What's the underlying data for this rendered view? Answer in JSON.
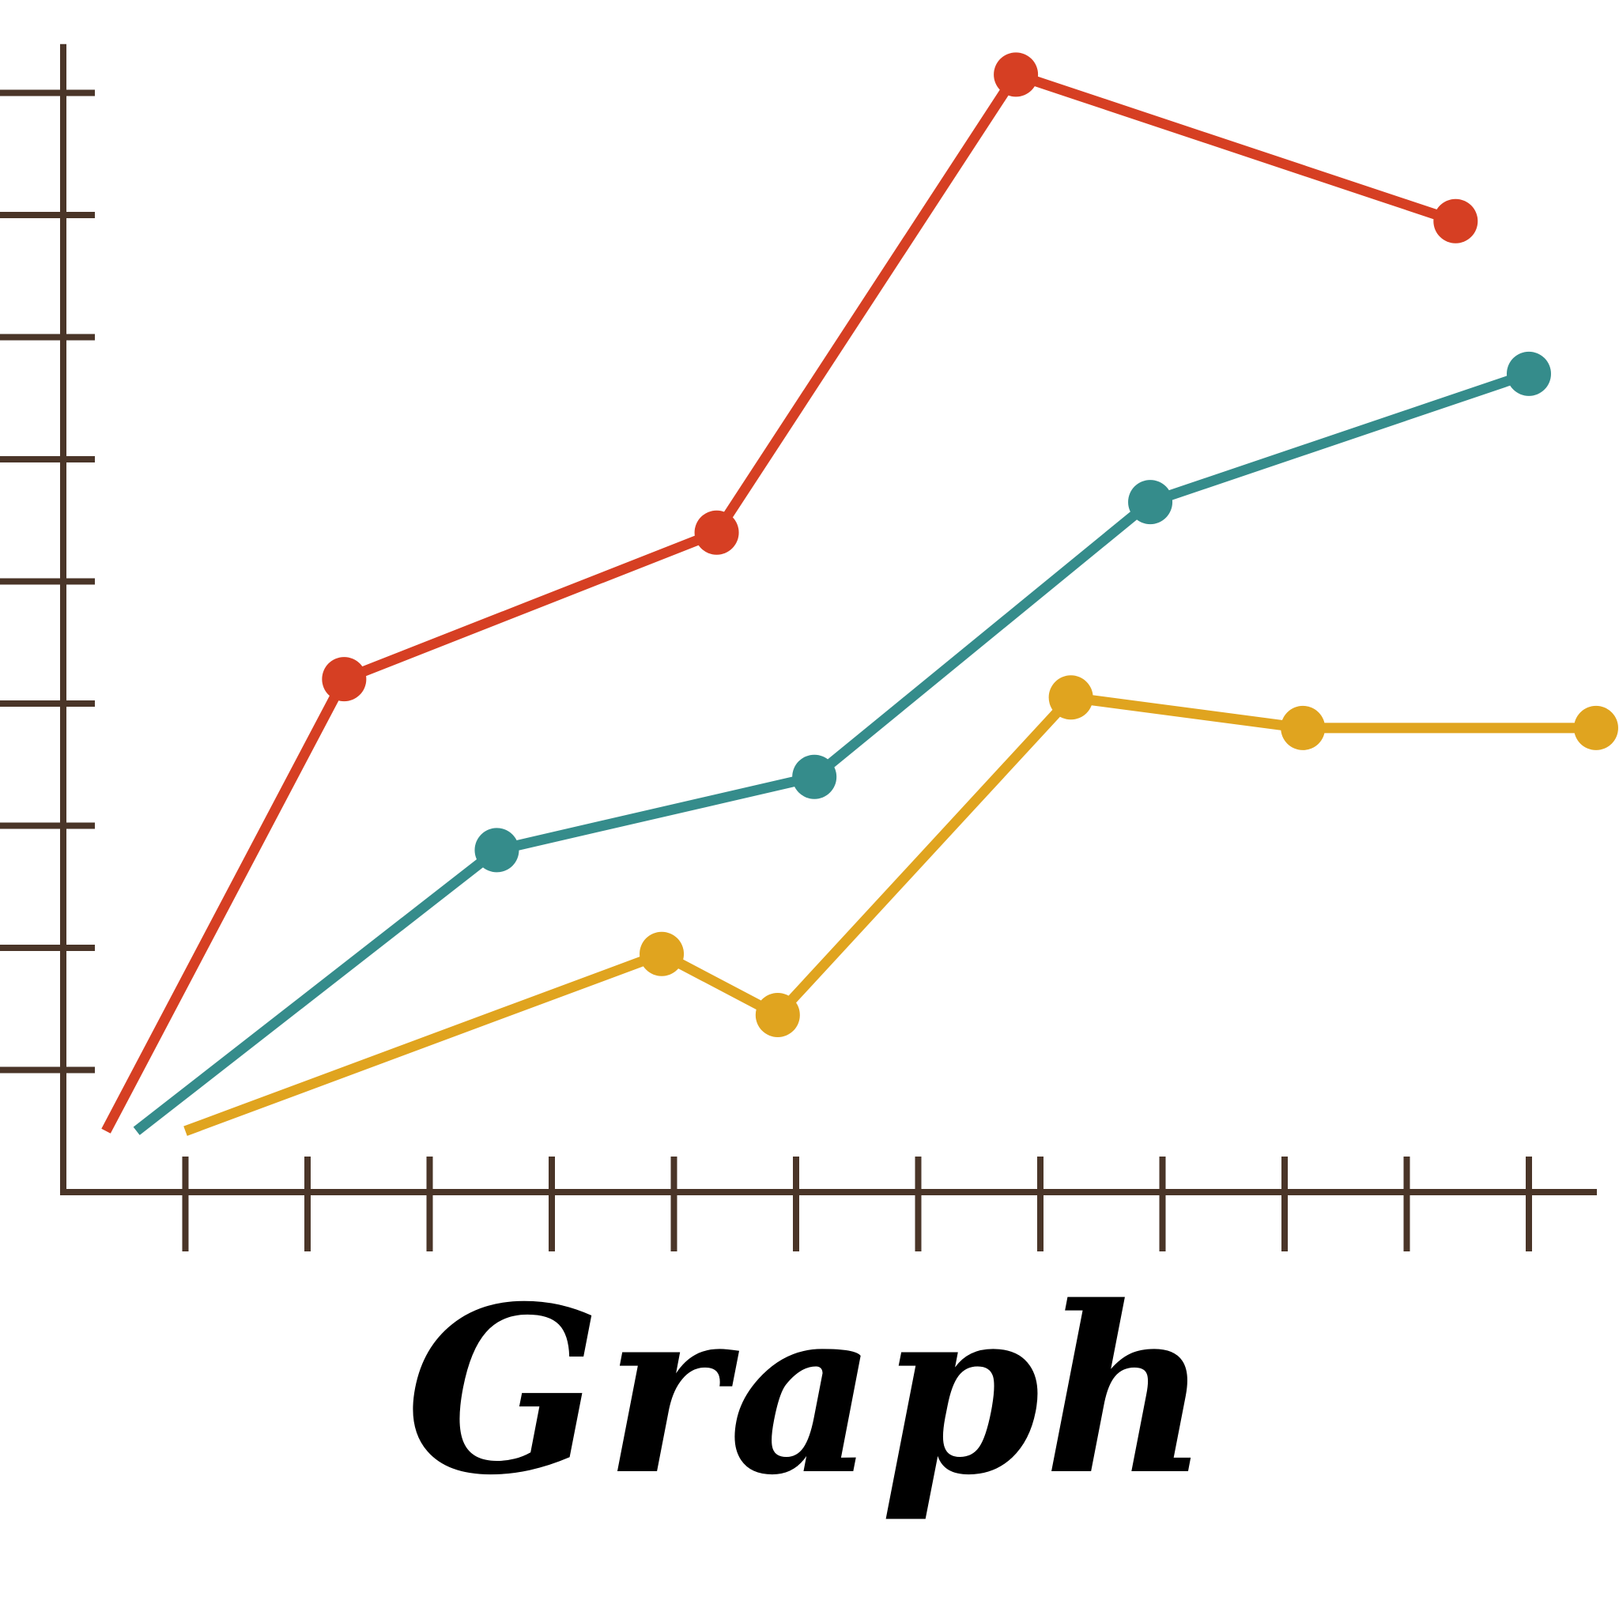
{
  "caption": "Graph",
  "colors": {
    "axis": "#4a3528",
    "background": "#ffffff",
    "caption": "#000000"
  },
  "chart_data": {
    "type": "line",
    "title": "",
    "xlabel": "",
    "ylabel": "",
    "x_tick_count": 12,
    "y_tick_count": 9,
    "tick_labels": false,
    "grid": false,
    "legend": "none",
    "xlim": [
      0,
      13
    ],
    "ylim": [
      0,
      9.4
    ],
    "series": [
      {
        "color": "#d63f23",
        "points": [
          [
            0.35,
            0.5
          ],
          [
            2.3,
            4.2
          ],
          [
            5.35,
            5.4
          ],
          [
            7.8,
            9.15
          ],
          [
            11.4,
            7.95
          ]
        ]
      },
      {
        "color": "#358c8b",
        "points": [
          [
            0.6,
            0.5
          ],
          [
            3.55,
            2.8
          ],
          [
            6.15,
            3.4
          ],
          [
            8.9,
            5.65
          ],
          [
            12.0,
            6.7
          ]
        ]
      },
      {
        "color": "#e0a41f",
        "points": [
          [
            1.0,
            0.5
          ],
          [
            4.9,
            1.95
          ],
          [
            5.85,
            1.45
          ],
          [
            8.25,
            4.05
          ],
          [
            10.15,
            3.8
          ],
          [
            12.55,
            3.8
          ]
        ]
      }
    ]
  }
}
